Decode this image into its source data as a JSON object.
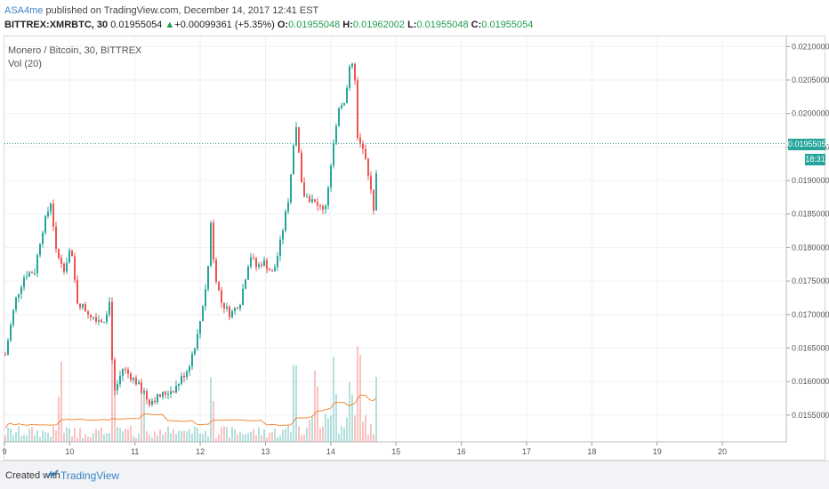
{
  "header": {
    "username": "ASA4me",
    "publish_text": "published on TradingView.com, December 14, 2017 12:41 EST",
    "symbol": "BITTREX:XMRBTC, 30",
    "last": "0.01955054",
    "change": "+0.00099361 (+5.35%)",
    "open_label": "O:",
    "open": "0.01955048",
    "high_label": "H:",
    "high": "0.01962002",
    "low_label": "L:",
    "low": "0.01955048",
    "close_label": "C:",
    "close": "0.01955054"
  },
  "legend": {
    "title": "Monero / Bitcoin, 30, BITTREX",
    "indicator": "Vol (20)"
  },
  "price_tag": {
    "price": "0.01955054",
    "countdown": "18:31"
  },
  "footer": {
    "created_with": "Created with",
    "brand": "TradingView"
  },
  "colors": {
    "up": "#26a69a",
    "down": "#ef5350",
    "grid": "#eef0f3",
    "volume_ma": "#f28b3c",
    "accent": "#3d85c6"
  },
  "chart_data": {
    "type": "candlestick",
    "x_ticks": [
      "9",
      "10",
      "11",
      "12",
      "13",
      "14",
      "15",
      "16",
      "17",
      "18",
      "19",
      "20"
    ],
    "y_ticks": [
      "0.02100000",
      "0.02050000",
      "0.02000000",
      "0.01950000",
      "0.01900000",
      "0.01850000",
      "0.01800000",
      "0.01750000",
      "0.01700000",
      "0.01650000",
      "0.01600000",
      "0.01550000"
    ],
    "ylim": [
      0.0151,
      0.02115
    ],
    "xlim": [
      9.0,
      20.98
    ],
    "last_price": 0.01955054,
    "close_path": [
      [
        9.0,
        0.0164
      ],
      [
        9.15,
        0.0172
      ],
      [
        9.3,
        0.0176
      ],
      [
        9.45,
        0.01765
      ],
      [
        9.55,
        0.0182
      ],
      [
        9.7,
        0.0187
      ],
      [
        9.78,
        0.0179
      ],
      [
        9.9,
        0.0177
      ],
      [
        10.0,
        0.018
      ],
      [
        10.1,
        0.0172
      ],
      [
        10.3,
        0.017
      ],
      [
        10.5,
        0.0169
      ],
      [
        10.6,
        0.0172
      ],
      [
        10.66,
        0.0158
      ],
      [
        10.8,
        0.0162
      ],
      [
        11.0,
        0.016
      ],
      [
        11.2,
        0.0157
      ],
      [
        11.4,
        0.0158
      ],
      [
        11.6,
        0.0159
      ],
      [
        11.8,
        0.0162
      ],
      [
        11.95,
        0.0167
      ],
      [
        12.1,
        0.0176
      ],
      [
        12.15,
        0.0184
      ],
      [
        12.2,
        0.0177
      ],
      [
        12.3,
        0.0172
      ],
      [
        12.45,
        0.017
      ],
      [
        12.6,
        0.0172
      ],
      [
        12.75,
        0.0179
      ],
      [
        12.85,
        0.0177
      ],
      [
        12.95,
        0.0178
      ],
      [
        13.1,
        0.0176
      ],
      [
        13.2,
        0.018
      ],
      [
        13.35,
        0.0188
      ],
      [
        13.45,
        0.0199
      ],
      [
        13.55,
        0.0188
      ],
      [
        13.7,
        0.0187
      ],
      [
        13.8,
        0.0186
      ],
      [
        13.9,
        0.0186
      ],
      [
        14.0,
        0.0193
      ],
      [
        14.1,
        0.0201
      ],
      [
        14.2,
        0.0202
      ],
      [
        14.3,
        0.0208
      ],
      [
        14.35,
        0.0206
      ],
      [
        14.4,
        0.0196
      ],
      [
        14.5,
        0.0195
      ],
      [
        14.58,
        0.019
      ],
      [
        14.64,
        0.0185
      ],
      [
        14.72,
        0.01955
      ]
    ],
    "volume": {
      "label": "Vol (20)",
      "spike_days": [
        9.85,
        10.66,
        11.1,
        12.15,
        13.45,
        13.75,
        14.05,
        14.3,
        14.4,
        14.72
      ]
    }
  }
}
